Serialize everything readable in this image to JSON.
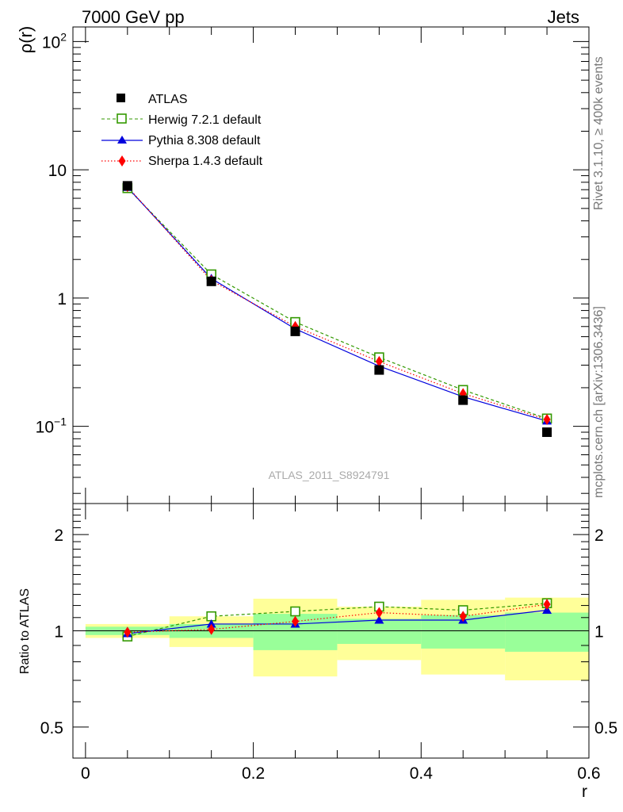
{
  "header": {
    "left": "7000 GeV pp",
    "right": "Jets"
  },
  "watermark": "ATLAS_2011_S8924791",
  "side_labels": {
    "top": "Rivet 3.1.10, ≥ 400k events",
    "bottom": "mcplots.cern.ch [arXiv:1306.3436]"
  },
  "colors": {
    "data": "#000000",
    "herwig": "#339900",
    "pythia": "#0000dd",
    "sherpa": "#ff0000",
    "band_inner": "#99ff99",
    "band_outer": "#ffff99"
  },
  "chart_data": [
    {
      "type": "line",
      "panel": "main",
      "title": "",
      "xlabel": "r",
      "ylabel": "ρ(r)",
      "xlim": [
        -0.015,
        0.6
      ],
      "ylim": [
        0.025,
        130
      ],
      "yscale": "log",
      "legend_position": "top-left",
      "x": [
        0.05,
        0.15,
        0.25,
        0.35,
        0.45,
        0.55
      ],
      "series": [
        {
          "name": "ATLAS",
          "key": "data",
          "marker": "filled-square",
          "values": [
            7.5,
            1.35,
            0.55,
            0.275,
            0.16,
            0.09
          ]
        },
        {
          "name": "Herwig 7.2.1 default",
          "key": "herwig",
          "marker": "open-square",
          "line": "dashed",
          "values": [
            7.2,
            1.53,
            0.65,
            0.345,
            0.192,
            0.115
          ]
        },
        {
          "name": "Pythia 8.308 default",
          "key": "pythia",
          "marker": "triangle",
          "line": "solid",
          "values": [
            7.3,
            1.42,
            0.575,
            0.295,
            0.17,
            0.11
          ]
        },
        {
          "name": "Sherpa 1.4.3 default",
          "key": "sherpa",
          "marker": "diamond",
          "line": "dotted",
          "values": [
            7.4,
            1.37,
            0.6,
            0.32,
            0.18,
            0.113
          ]
        }
      ],
      "y_tick_labels": [
        {
          "value": 0.1,
          "base": "10",
          "exp": "−1"
        },
        {
          "value": 1,
          "base": "1",
          "exp": ""
        },
        {
          "value": 10,
          "base": "10",
          "exp": ""
        },
        {
          "value": 100,
          "base": "10",
          "exp": "2"
        }
      ]
    },
    {
      "type": "line",
      "panel": "ratio",
      "xlabel": "r",
      "ylabel": "Ratio to ATLAS",
      "xlim": [
        -0.015,
        0.6
      ],
      "ylim": [
        0.4,
        2.5
      ],
      "yscale": "log",
      "reference": 1.0,
      "x": [
        0.05,
        0.15,
        0.25,
        0.35,
        0.45,
        0.55
      ],
      "bands": [
        {
          "xlo": 0.0,
          "xhi": 0.1,
          "inner": [
            0.97,
            1.03
          ],
          "outer": [
            0.95,
            1.05
          ]
        },
        {
          "xlo": 0.1,
          "xhi": 0.2,
          "inner": [
            0.95,
            1.05
          ],
          "outer": [
            0.89,
            1.11
          ]
        },
        {
          "xlo": 0.2,
          "xhi": 0.3,
          "inner": [
            0.87,
            1.13
          ],
          "outer": [
            0.72,
            1.26
          ]
        },
        {
          "xlo": 0.3,
          "xhi": 0.4,
          "inner": [
            0.91,
            1.09
          ],
          "outer": [
            0.81,
            1.19
          ]
        },
        {
          "xlo": 0.4,
          "xhi": 0.5,
          "inner": [
            0.88,
            1.12
          ],
          "outer": [
            0.73,
            1.25
          ]
        },
        {
          "xlo": 0.5,
          "xhi": 0.6,
          "inner": [
            0.86,
            1.14
          ],
          "outer": [
            0.7,
            1.27
          ]
        }
      ],
      "series": [
        {
          "name": "Herwig 7.2.1 default",
          "key": "herwig",
          "marker": "open-square",
          "line": "dashed",
          "values": [
            0.96,
            1.11,
            1.15,
            1.19,
            1.16,
            1.22
          ]
        },
        {
          "name": "Pythia 8.308 default",
          "key": "pythia",
          "marker": "triangle",
          "line": "solid",
          "values": [
            0.98,
            1.05,
            1.05,
            1.08,
            1.08,
            1.16
          ]
        },
        {
          "name": "Sherpa 1.4.3 default",
          "key": "sherpa",
          "marker": "diamond",
          "line": "dotted",
          "values": [
            0.99,
            1.01,
            1.07,
            1.14,
            1.11,
            1.21
          ]
        }
      ],
      "y_tick_labels": [
        {
          "value": 0.5,
          "label": "0.5"
        },
        {
          "value": 1,
          "label": "1"
        },
        {
          "value": 2,
          "label": "2"
        }
      ],
      "x_tick_labels": [
        {
          "value": 0,
          "label": "0"
        },
        {
          "value": 0.2,
          "label": "0.2"
        },
        {
          "value": 0.4,
          "label": "0.4"
        },
        {
          "value": 0.6,
          "label": "0.6"
        }
      ]
    }
  ]
}
